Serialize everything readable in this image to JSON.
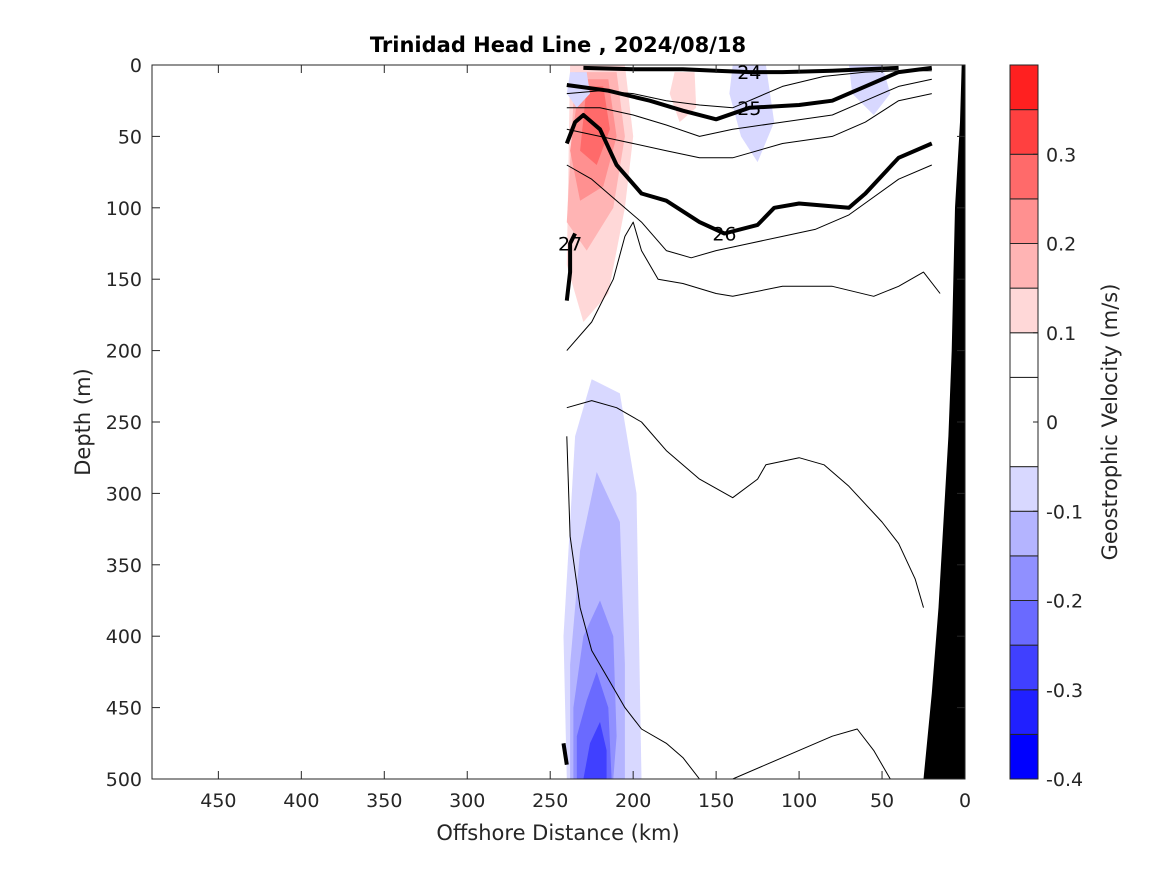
{
  "chart_data": {
    "type": "heatmap",
    "title": "Trinidad Head Line , 2024/08/18",
    "xlabel": "Offshore Distance (km)",
    "ylabel": "Depth (m)",
    "colorbar_label": "Geostrophic Velocity (m/s)",
    "xlim": [
      490,
      0
    ],
    "ylim": [
      500,
      0
    ],
    "x_reversed": true,
    "y_reversed": true,
    "x_ticks": [
      450,
      400,
      350,
      300,
      250,
      200,
      150,
      100,
      50,
      0
    ],
    "y_ticks": [
      0,
      50,
      100,
      150,
      200,
      250,
      300,
      350,
      400,
      450,
      500
    ],
    "colorbar": {
      "range": [
        -0.4,
        0.4
      ],
      "ticks": [
        0.3,
        0.2,
        0.1,
        0,
        -0.1,
        -0.2,
        -0.3,
        -0.4
      ],
      "levels": [
        -0.4,
        -0.35,
        -0.3,
        -0.25,
        -0.2,
        -0.15,
        -0.1,
        -0.05,
        0.05,
        0.1,
        0.15,
        0.2,
        0.25,
        0.3,
        0.35,
        0.4
      ],
      "colors": [
        "#0000ff",
        "#2020ff",
        "#4040ff",
        "#6a6aff",
        "#9090ff",
        "#b4b4ff",
        "#d8d8ff",
        "#ffffff",
        "#ffffff",
        "#ffd8d8",
        "#ffb4b4",
        "#ff9090",
        "#ff6a6a",
        "#ff4040",
        "#ff2020",
        "#ff0000"
      ]
    },
    "velocity_patches": [
      {
        "level": 0.075,
        "points": [
          [
            240,
            0
          ],
          [
            200,
            0
          ],
          [
            190,
            60
          ],
          [
            200,
            120
          ],
          [
            210,
            200
          ],
          [
            220,
            240
          ],
          [
            240,
            240
          ]
        ]
      },
      {
        "level": 0.125,
        "points": [
          [
            238,
            0
          ],
          [
            205,
            0
          ],
          [
            200,
            50
          ],
          [
            205,
            100
          ],
          [
            215,
            160
          ],
          [
            230,
            180
          ],
          [
            240,
            140
          ]
        ]
      },
      {
        "level": 0.175,
        "points": [
          [
            235,
            5
          ],
          [
            210,
            5
          ],
          [
            205,
            50
          ],
          [
            212,
            100
          ],
          [
            228,
            130
          ],
          [
            240,
            110
          ]
        ]
      },
      {
        "level": 0.225,
        "points": [
          [
            232,
            10
          ],
          [
            215,
            10
          ],
          [
            210,
            50
          ],
          [
            218,
            85
          ],
          [
            232,
            95
          ],
          [
            238,
            60
          ]
        ]
      },
      {
        "level": 0.275,
        "points": [
          [
            228,
            15
          ],
          [
            218,
            15
          ],
          [
            214,
            45
          ],
          [
            222,
            70
          ],
          [
            232,
            60
          ]
        ]
      },
      {
        "level": 0.075,
        "points": [
          [
            180,
            0
          ],
          [
            160,
            0
          ],
          [
            155,
            40
          ],
          [
            165,
            65
          ],
          [
            180,
            55
          ],
          [
            185,
            20
          ]
        ]
      },
      {
        "level": 0.125,
        "points": [
          [
            175,
            5
          ],
          [
            163,
            5
          ],
          [
            162,
            30
          ],
          [
            172,
            40
          ],
          [
            178,
            20
          ]
        ]
      },
      {
        "level": -0.075,
        "points": [
          [
            140,
            0
          ],
          [
            120,
            0
          ],
          [
            115,
            40
          ],
          [
            125,
            68
          ],
          [
            135,
            50
          ],
          [
            142,
            20
          ]
        ]
      },
      {
        "level": -0.075,
        "points": [
          [
            70,
            0
          ],
          [
            50,
            0
          ],
          [
            45,
            20
          ],
          [
            55,
            35
          ],
          [
            68,
            20
          ]
        ]
      },
      {
        "level": -0.075,
        "points": [
          [
            238,
            5
          ],
          [
            228,
            5
          ],
          [
            226,
            20
          ],
          [
            234,
            30
          ],
          [
            240,
            20
          ]
        ]
      },
      {
        "level": -0.075,
        "points": [
          [
            235,
            260
          ],
          [
            225,
            220
          ],
          [
            208,
            230
          ],
          [
            198,
            300
          ],
          [
            195,
            500
          ],
          [
            240,
            500
          ],
          [
            242,
            400
          ]
        ]
      },
      {
        "level": -0.125,
        "points": [
          [
            232,
            340
          ],
          [
            222,
            285
          ],
          [
            208,
            320
          ],
          [
            205,
            420
          ],
          [
            205,
            500
          ],
          [
            238,
            500
          ],
          [
            238,
            420
          ]
        ]
      },
      {
        "level": -0.175,
        "points": [
          [
            230,
            400
          ],
          [
            220,
            375
          ],
          [
            212,
            400
          ],
          [
            210,
            470
          ],
          [
            212,
            500
          ],
          [
            236,
            500
          ],
          [
            236,
            450
          ]
        ]
      },
      {
        "level": -0.225,
        "points": [
          [
            228,
            445
          ],
          [
            222,
            425
          ],
          [
            215,
            450
          ],
          [
            213,
            500
          ],
          [
            234,
            500
          ],
          [
            234,
            470
          ]
        ]
      },
      {
        "level": -0.275,
        "points": [
          [
            226,
            475
          ],
          [
            220,
            460
          ],
          [
            216,
            480
          ],
          [
            216,
            500
          ],
          [
            230,
            500
          ]
        ]
      }
    ],
    "bathymetry": [
      [
        0,
        0
      ],
      [
        2,
        0
      ],
      [
        3,
        40
      ],
      [
        6,
        100
      ],
      [
        8,
        200
      ],
      [
        10,
        260
      ],
      [
        12,
        300
      ],
      [
        16,
        380
      ],
      [
        20,
        440
      ],
      [
        25,
        500
      ],
      [
        0,
        500
      ]
    ],
    "density_contours": [
      {
        "bold": true,
        "label": "24",
        "points": [
          [
            230,
            2
          ],
          [
            200,
            3
          ],
          [
            170,
            3
          ],
          [
            150,
            4
          ],
          [
            130,
            5
          ],
          [
            110,
            5
          ],
          [
            80,
            4
          ],
          [
            60,
            3
          ],
          [
            40,
            2
          ]
        ]
      },
      {
        "bold": true,
        "label": "25",
        "points": [
          [
            240,
            14
          ],
          [
            215,
            18
          ],
          [
            190,
            25
          ],
          [
            170,
            32
          ],
          [
            150,
            38
          ],
          [
            130,
            30
          ],
          [
            100,
            28
          ],
          [
            80,
            25
          ],
          [
            60,
            15
          ],
          [
            40,
            5
          ],
          [
            20,
            2
          ]
        ]
      },
      {
        "bold": true,
        "label": "26",
        "points": [
          [
            240,
            55
          ],
          [
            235,
            40
          ],
          [
            230,
            35
          ],
          [
            220,
            45
          ],
          [
            210,
            70
          ],
          [
            195,
            90
          ],
          [
            180,
            95
          ],
          [
            160,
            110
          ],
          [
            145,
            118
          ],
          [
            125,
            112
          ],
          [
            115,
            100
          ],
          [
            100,
            97
          ],
          [
            70,
            100
          ],
          [
            60,
            90
          ],
          [
            40,
            65
          ],
          [
            20,
            55
          ]
        ]
      },
      {
        "bold": true,
        "label": "27",
        "points": [
          [
            240,
            165
          ],
          [
            238,
            145
          ],
          [
            238,
            125
          ],
          [
            235,
            118
          ]
        ]
      },
      {
        "bold": true,
        "label": "",
        "points": [
          [
            240,
            490
          ],
          [
            242,
            475
          ]
        ]
      },
      {
        "bold": false,
        "label": "",
        "points": [
          [
            240,
            20
          ],
          [
            220,
            18
          ],
          [
            200,
            20
          ],
          [
            180,
            25
          ],
          [
            160,
            28
          ],
          [
            140,
            30
          ],
          [
            110,
            15
          ],
          [
            85,
            8
          ],
          [
            60,
            5
          ],
          [
            40,
            4
          ],
          [
            20,
            4
          ]
        ]
      },
      {
        "bold": false,
        "label": "",
        "points": [
          [
            240,
            30
          ],
          [
            220,
            30
          ],
          [
            200,
            35
          ],
          [
            180,
            42
          ],
          [
            160,
            50
          ],
          [
            140,
            45
          ],
          [
            110,
            40
          ],
          [
            80,
            35
          ],
          [
            60,
            25
          ],
          [
            40,
            15
          ],
          [
            20,
            10
          ]
        ]
      },
      {
        "bold": false,
        "label": "",
        "points": [
          [
            240,
            45
          ],
          [
            220,
            50
          ],
          [
            200,
            55
          ],
          [
            180,
            60
          ],
          [
            160,
            65
          ],
          [
            140,
            65
          ],
          [
            110,
            55
          ],
          [
            80,
            50
          ],
          [
            60,
            40
          ],
          [
            40,
            25
          ],
          [
            20,
            20
          ]
        ]
      },
      {
        "bold": false,
        "label": "",
        "points": [
          [
            240,
            70
          ],
          [
            225,
            80
          ],
          [
            210,
            95
          ],
          [
            195,
            110
          ],
          [
            180,
            130
          ],
          [
            165,
            135
          ],
          [
            150,
            130
          ],
          [
            130,
            125
          ],
          [
            110,
            120
          ],
          [
            90,
            115
          ],
          [
            70,
            105
          ],
          [
            40,
            80
          ],
          [
            20,
            70
          ]
        ]
      },
      {
        "bold": false,
        "label": "",
        "points": [
          [
            240,
            200
          ],
          [
            225,
            180
          ],
          [
            212,
            150
          ],
          [
            205,
            120
          ],
          [
            200,
            110
          ],
          [
            195,
            130
          ],
          [
            185,
            150
          ],
          [
            170,
            153
          ],
          [
            150,
            160
          ],
          [
            140,
            162
          ],
          [
            110,
            155
          ],
          [
            80,
            155
          ],
          [
            55,
            162
          ],
          [
            40,
            155
          ],
          [
            25,
            145
          ],
          [
            15,
            160
          ]
        ]
      },
      {
        "bold": false,
        "label": "",
        "points": [
          [
            240,
            240
          ],
          [
            225,
            235
          ],
          [
            210,
            240
          ],
          [
            195,
            250
          ],
          [
            180,
            270
          ],
          [
            160,
            290
          ],
          [
            140,
            303
          ],
          [
            125,
            290
          ],
          [
            120,
            280
          ],
          [
            100,
            275
          ],
          [
            85,
            280
          ],
          [
            70,
            295
          ],
          [
            50,
            320
          ],
          [
            40,
            335
          ],
          [
            30,
            360
          ],
          [
            25,
            380
          ]
        ]
      },
      {
        "bold": false,
        "label": "",
        "points": [
          [
            240,
            260
          ],
          [
            238,
            330
          ],
          [
            232,
            380
          ],
          [
            225,
            410
          ],
          [
            215,
            430
          ],
          [
            205,
            450
          ],
          [
            195,
            465
          ],
          [
            180,
            475
          ],
          [
            170,
            485
          ],
          [
            160,
            500
          ]
        ]
      },
      {
        "bold": false,
        "label": "",
        "points": [
          [
            140,
            500
          ],
          [
            120,
            490
          ],
          [
            100,
            480
          ],
          [
            80,
            470
          ],
          [
            65,
            465
          ],
          [
            55,
            480
          ],
          [
            45,
            500
          ]
        ]
      }
    ]
  }
}
